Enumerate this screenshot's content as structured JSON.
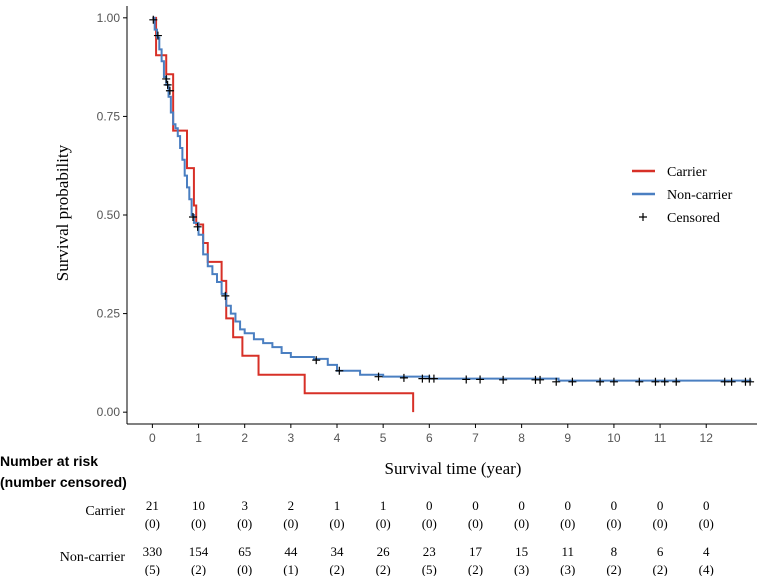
{
  "chart_data": {
    "type": "line",
    "xlabel": "Survival time (year)",
    "ylabel": "Survival probability",
    "xlim": [
      -0.55,
      13.1
    ],
    "ylim": [
      -0.03,
      1.03
    ],
    "x_ticks": [
      0,
      1,
      2,
      3,
      4,
      5,
      6,
      7,
      8,
      9,
      10,
      11,
      12
    ],
    "x_tick_labels": [
      "0",
      "1",
      "2",
      "3",
      "4",
      "5",
      "6",
      "7",
      "8",
      "9",
      "10",
      "11",
      "12"
    ],
    "y_ticks": [
      0,
      0.25,
      0.5,
      0.75,
      1.0
    ],
    "y_tick_labels": [
      "0.00",
      "0.25",
      "0.50",
      "0.75",
      "1.00"
    ],
    "legend": {
      "position": "top-right",
      "entries": [
        {
          "label": "Carrier",
          "color": "#d73027",
          "kind": "line"
        },
        {
          "label": "Non-carrier",
          "color": "#4a7fc1",
          "kind": "line"
        },
        {
          "label": "Censored",
          "color": "#000000",
          "kind": "plus"
        }
      ]
    },
    "series": [
      {
        "name": "Carrier",
        "color": "#d73027",
        "step": [
          [
            0,
            1.0
          ],
          [
            0.08,
            0.905
          ],
          [
            0.3,
            0.857
          ],
          [
            0.45,
            0.714
          ],
          [
            0.75,
            0.619
          ],
          [
            0.9,
            0.524
          ],
          [
            0.95,
            0.476
          ],
          [
            1.1,
            0.429
          ],
          [
            1.2,
            0.381
          ],
          [
            1.5,
            0.333
          ],
          [
            1.6,
            0.238
          ],
          [
            1.75,
            0.19
          ],
          [
            1.95,
            0.143
          ],
          [
            2.3,
            0.095
          ],
          [
            3.3,
            0.048
          ],
          [
            5.65,
            0.0
          ]
        ]
      },
      {
        "name": "Non-carrier",
        "color": "#4a7fc1",
        "step": [
          [
            0,
            1.0
          ],
          [
            0.05,
            0.97
          ],
          [
            0.1,
            0.95
          ],
          [
            0.15,
            0.92
          ],
          [
            0.2,
            0.89
          ],
          [
            0.25,
            0.85
          ],
          [
            0.3,
            0.83
          ],
          [
            0.35,
            0.8
          ],
          [
            0.4,
            0.76
          ],
          [
            0.45,
            0.73
          ],
          [
            0.5,
            0.72
          ],
          [
            0.55,
            0.7
          ],
          [
            0.6,
            0.67
          ],
          [
            0.65,
            0.64
          ],
          [
            0.7,
            0.6
          ],
          [
            0.75,
            0.57
          ],
          [
            0.8,
            0.54
          ],
          [
            0.85,
            0.5
          ],
          [
            0.9,
            0.48
          ],
          [
            1.0,
            0.45
          ],
          [
            1.1,
            0.4
          ],
          [
            1.2,
            0.37
          ],
          [
            1.3,
            0.35
          ],
          [
            1.4,
            0.33
          ],
          [
            1.5,
            0.3
          ],
          [
            1.6,
            0.27
          ],
          [
            1.7,
            0.25
          ],
          [
            1.8,
            0.23
          ],
          [
            1.9,
            0.21
          ],
          [
            2.0,
            0.2
          ],
          [
            2.2,
            0.185
          ],
          [
            2.4,
            0.175
          ],
          [
            2.6,
            0.165
          ],
          [
            2.8,
            0.15
          ],
          [
            3.0,
            0.14
          ],
          [
            3.5,
            0.135
          ],
          [
            3.8,
            0.12
          ],
          [
            4.0,
            0.105
          ],
          [
            4.5,
            0.095
          ],
          [
            5.0,
            0.09
          ],
          [
            6.0,
            0.085
          ],
          [
            8.8,
            0.08
          ],
          [
            12.98,
            0.08
          ]
        ],
        "censored": [
          [
            0.02,
            0.995
          ],
          [
            0.12,
            0.955
          ],
          [
            0.3,
            0.845
          ],
          [
            0.33,
            0.83
          ],
          [
            0.38,
            0.815
          ],
          [
            0.88,
            0.495
          ],
          [
            0.98,
            0.47
          ],
          [
            1.58,
            0.295
          ],
          [
            3.55,
            0.132
          ],
          [
            4.05,
            0.105
          ],
          [
            4.9,
            0.09
          ],
          [
            5.45,
            0.087
          ],
          [
            5.85,
            0.085
          ],
          [
            6.0,
            0.085
          ],
          [
            6.1,
            0.085
          ],
          [
            6.8,
            0.083
          ],
          [
            7.1,
            0.083
          ],
          [
            7.6,
            0.082
          ],
          [
            8.3,
            0.082
          ],
          [
            8.4,
            0.082
          ],
          [
            8.75,
            0.077
          ],
          [
            9.1,
            0.077
          ],
          [
            9.7,
            0.077
          ],
          [
            10.0,
            0.077
          ],
          [
            10.55,
            0.077
          ],
          [
            10.9,
            0.077
          ],
          [
            11.1,
            0.077
          ],
          [
            11.35,
            0.077
          ],
          [
            12.4,
            0.077
          ],
          [
            12.55,
            0.077
          ],
          [
            12.85,
            0.077
          ],
          [
            12.95,
            0.077
          ]
        ]
      }
    ],
    "risk_table": {
      "header_line1": "Number at risk",
      "header_line2": "(number censored)",
      "times": [
        0,
        1,
        2,
        3,
        4,
        5,
        6,
        7,
        8,
        9,
        10,
        11,
        12
      ],
      "rows": [
        {
          "name": "Carrier",
          "at_risk": [
            "21",
            "10",
            "3",
            "2",
            "1",
            "1",
            "0",
            "0",
            "0",
            "0",
            "0",
            "0",
            "0"
          ],
          "censored": [
            "(0)",
            "(0)",
            "(0)",
            "(0)",
            "(0)",
            "(0)",
            "(0)",
            "(0)",
            "(0)",
            "(0)",
            "(0)",
            "(0)",
            "(0)"
          ]
        },
        {
          "name": "Non-carrier",
          "at_risk": [
            "330",
            "154",
            "65",
            "44",
            "34",
            "26",
            "23",
            "17",
            "15",
            "11",
            "8",
            "6",
            "4"
          ],
          "censored": [
            "(5)",
            "(2)",
            "(0)",
            "(1)",
            "(2)",
            "(2)",
            "(5)",
            "(2)",
            "(3)",
            "(3)",
            "(2)",
            "(2)",
            "(4)"
          ]
        }
      ]
    }
  }
}
